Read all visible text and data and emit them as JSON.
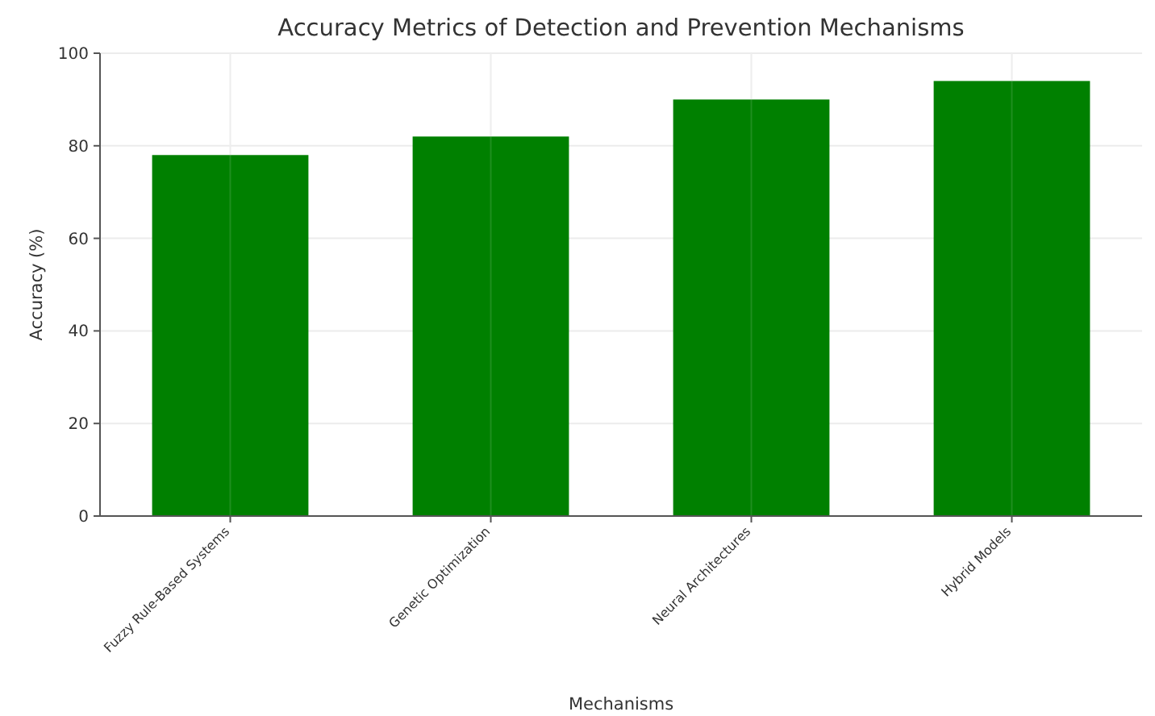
{
  "chart_data": {
    "type": "bar",
    "title": "Accuracy Metrics of Detection and Prevention Mechanisms",
    "xlabel": "Mechanisms",
    "ylabel": "Accuracy (%)",
    "categories": [
      "Fuzzy Rule-Based Systems",
      "Genetic Optimization",
      "Neural Architectures",
      "Hybrid Models"
    ],
    "values": [
      78,
      82,
      90,
      94
    ],
    "color": "#008000",
    "ylim": [
      0,
      100
    ],
    "yticks": [
      0,
      20,
      40,
      60,
      80,
      100
    ],
    "grid": true
  }
}
